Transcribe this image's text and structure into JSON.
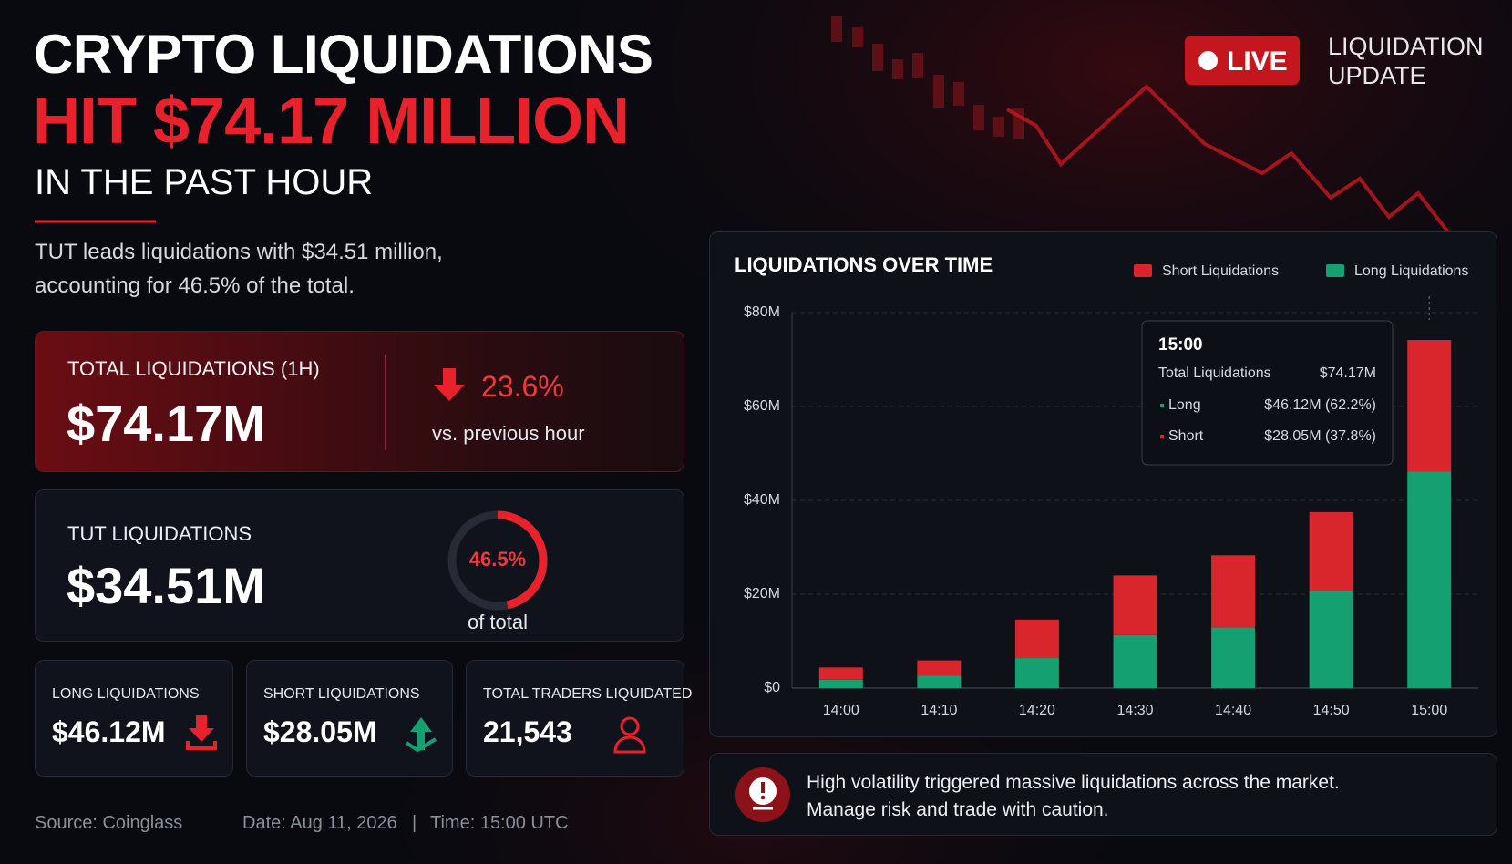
{
  "header": {
    "title_line1": "CRYPTO LIQUIDATIONS",
    "title_line2": "HIT $74.17 MILLION",
    "title_line3": "IN THE PAST HOUR",
    "summary": [
      "TUT leads liquidations with $34.51 million,",
      "accounting for 46.5% of the total."
    ]
  },
  "badge": {
    "live": "LIVE",
    "caption": [
      "LIQUIDATION",
      "UPDATE"
    ]
  },
  "cards": {
    "total": {
      "label": "TOTAL LIQUIDATIONS (1H)",
      "value": "$74.17M",
      "change": "23.6%",
      "change_caption": "vs. previous hour"
    },
    "tut": {
      "label": "TUT LIQUIDATIONS",
      "value": "$34.51M",
      "share": 46.5,
      "share_label": "46.5%",
      "share_caption": "of total"
    },
    "long": {
      "label": "LONG LIQUIDATIONS",
      "value": "$46.12M"
    },
    "short": {
      "label": "SHORT LIQUIDATIONS",
      "value": "$28.05M"
    },
    "traders": {
      "label": "TOTAL TRADERS LIQUIDATED",
      "value": "21,543"
    }
  },
  "footer": {
    "source": "Source: Coinglass",
    "date": "Date: Aug 11, 2026",
    "separator": "|",
    "time": "Time: 15:00 UTC"
  },
  "alert": {
    "lines": [
      "High volatility triggered massive liquidations across the market.",
      "Manage risk and trade with caution."
    ]
  },
  "chart_data": {
    "type": "bar",
    "stacked": true,
    "title": "LIQUIDATIONS OVER TIME",
    "categories": [
      "14:00",
      "14:10",
      "14:20",
      "14:30",
      "14:40",
      "14:50",
      "15:00"
    ],
    "series": [
      {
        "name": "Short Liquidations",
        "color": "#d9262c",
        "values": [
          2.6,
          3.2,
          8.2,
          12.7,
          15.4,
          16.8,
          28.05
        ]
      },
      {
        "name": "Long Liquidations",
        "color": "#14a070",
        "values": [
          1.8,
          2.7,
          6.4,
          11.3,
          12.9,
          20.7,
          46.12
        ]
      }
    ],
    "ylim": [
      0,
      80
    ],
    "yticks": [
      {
        "value": 0,
        "label": "$0"
      },
      {
        "value": 20,
        "label": "$20M"
      },
      {
        "value": 40,
        "label": "$40M"
      },
      {
        "value": 60,
        "label": "$60M"
      },
      {
        "value": 80,
        "label": "$80M"
      }
    ],
    "grid": true,
    "legend": "top-right",
    "tooltip": {
      "title": "15:00",
      "rows": [
        {
          "label": "Total Liquidations",
          "value": "$74.17M"
        },
        {
          "label": "Long",
          "value": "$46.12M (62.2%)"
        },
        {
          "label": "Short",
          "value": "$28.05M (37.8%)"
        }
      ]
    }
  }
}
